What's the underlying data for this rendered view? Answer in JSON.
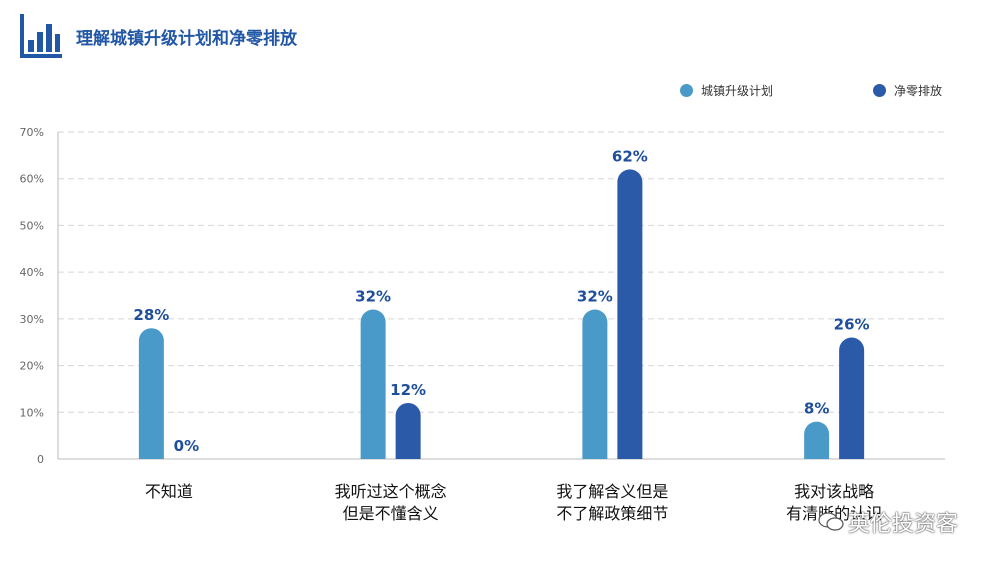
{
  "header": {
    "title": "理解城镇升级计划和净零排放"
  },
  "legend": [
    {
      "label": "城镇升级计划",
      "color": "#4a9ac9"
    },
    {
      "label": "净零排放",
      "color": "#2a5aa8"
    }
  ],
  "watermark": {
    "text": "英伦投资客"
  },
  "chart_data": {
    "type": "bar",
    "title": "理解城镇升级计划和净零排放",
    "categories": [
      [
        "不知道"
      ],
      [
        "我听过这个概念",
        "但是不懂含义"
      ],
      [
        "我了解含义但是",
        "不了解政策细节"
      ],
      [
        "我对该战略",
        "有清晰的认识"
      ]
    ],
    "series": [
      {
        "name": "城镇升级计划",
        "color": "#4a9ac9",
        "values": [
          28,
          32,
          32,
          8
        ]
      },
      {
        "name": "净零排放",
        "color": "#2a5aa8",
        "values": [
          0,
          12,
          62,
          26
        ]
      }
    ],
    "yticks": [
      "0",
      "10%",
      "20%",
      "30%",
      "40%",
      "50%",
      "60%",
      "70%"
    ],
    "ylim": [
      0,
      70
    ],
    "value_suffix": "%",
    "grid": true,
    "legend_position": "top-right"
  }
}
